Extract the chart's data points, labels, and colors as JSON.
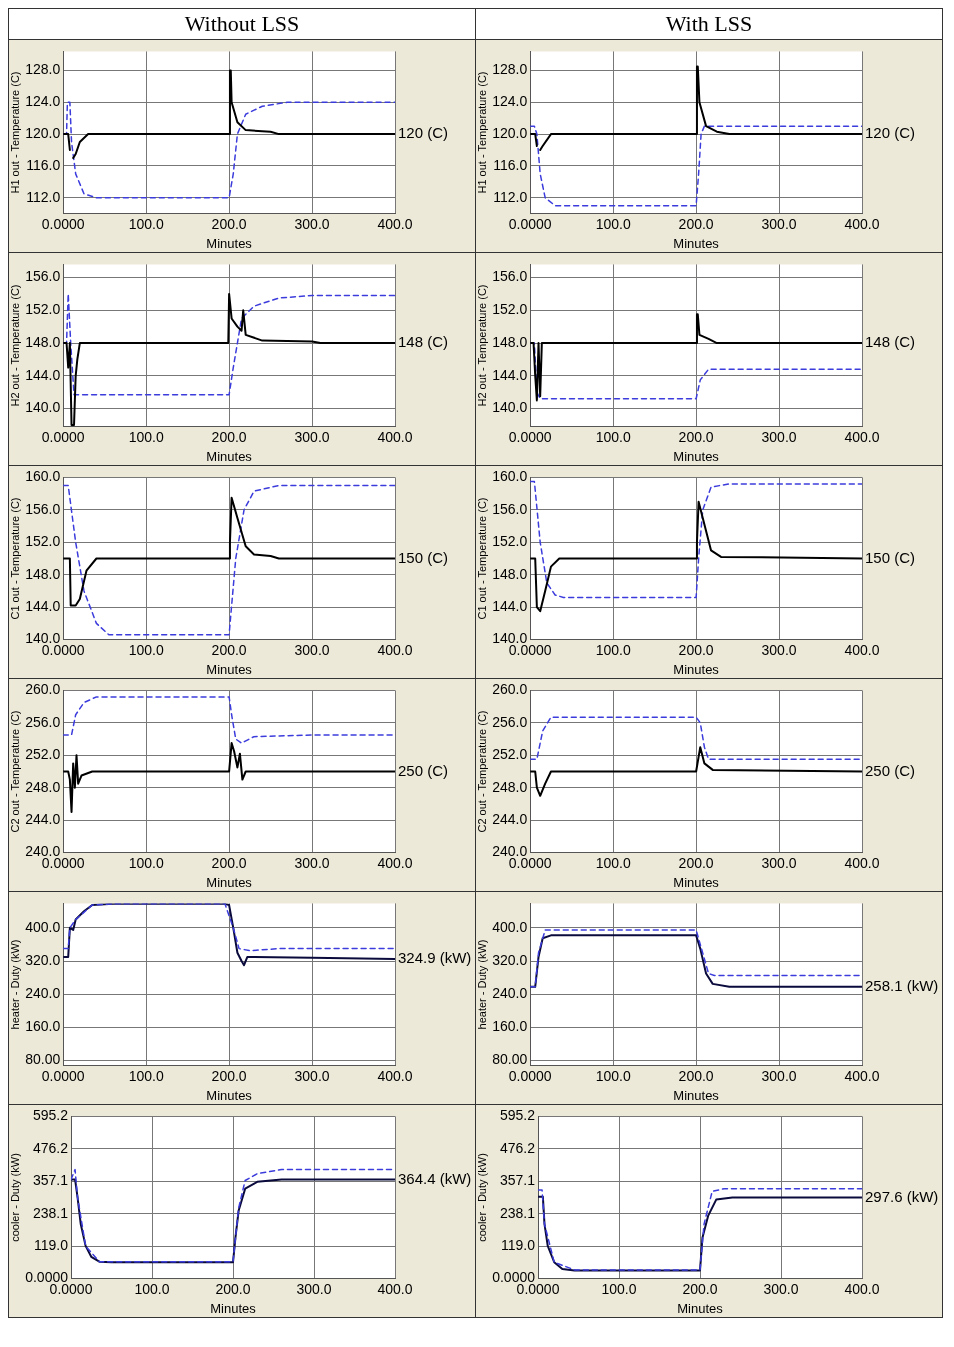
{
  "chart_data": [
    {
      "type": "line",
      "title": "Without LSS",
      "xlabel": "Minutes",
      "ylabel": "H1 out - Temperature (C)",
      "xlim": [
        0,
        400
      ],
      "ylim": [
        110,
        130.4
      ],
      "xticks": [
        {
          "value": 0,
          "label": "0.0000"
        },
        {
          "value": 100,
          "label": "100.0"
        },
        {
          "value": 200,
          "label": "200.0"
        },
        {
          "value": 300,
          "label": "300.0"
        },
        {
          "value": 400,
          "label": "400.0"
        }
      ],
      "yticks": [
        {
          "value": 112,
          "label": "112.0"
        },
        {
          "value": 116,
          "label": "116.0"
        },
        {
          "value": 120,
          "label": "120.0"
        },
        {
          "value": 124,
          "label": "124.0"
        },
        {
          "value": 128,
          "label": "128.0"
        }
      ],
      "grid": true,
      "annotations": [
        "120 (C)"
      ],
      "series": [
        {
          "color": "#000000",
          "line_style": "solid",
          "x": [
            0,
            6,
            8,
            9,
            11,
            12,
            15,
            20,
            30,
            200,
            201,
            202,
            203,
            210,
            220,
            250,
            260,
            400
          ],
          "values": [
            120,
            120,
            118,
            null,
            null,
            117,
            117.5,
            119,
            120,
            120,
            128,
            128,
            124,
            121.5,
            120.5,
            120.3,
            120,
            120
          ]
        },
        {
          "color": "#3c3cdc",
          "line_style": "dashed",
          "x": [
            0,
            4,
            5,
            8,
            10,
            15,
            25,
            40,
            200,
            205,
            210,
            220,
            240,
            270,
            400
          ],
          "values": [
            120,
            120,
            124,
            124,
            119,
            115,
            112.5,
            112,
            112,
            115,
            120,
            122.5,
            123.5,
            124,
            124
          ]
        }
      ]
    },
    {
      "type": "line",
      "title": "With LSS",
      "xlabel": "Minutes",
      "ylabel": "H1 out - Temperature (C)",
      "xlim": [
        0,
        400
      ],
      "ylim": [
        110,
        130.4
      ],
      "xticks": [
        {
          "value": 0,
          "label": "0.0000"
        },
        {
          "value": 100,
          "label": "100.0"
        },
        {
          "value": 200,
          "label": "200.0"
        },
        {
          "value": 300,
          "label": "300.0"
        },
        {
          "value": 400,
          "label": "400.0"
        }
      ],
      "yticks": [
        {
          "value": 112,
          "label": "112.0"
        },
        {
          "value": 116,
          "label": "116.0"
        },
        {
          "value": 120,
          "label": "120.0"
        },
        {
          "value": 124,
          "label": "124.0"
        },
        {
          "value": 128,
          "label": "128.0"
        }
      ],
      "grid": true,
      "annotations": [
        "120 (C)"
      ],
      "series": [
        {
          "color": "#000000",
          "line_style": "solid",
          "x": [
            0,
            6,
            8,
            9,
            11,
            12,
            15,
            25,
            200,
            201,
            202,
            204,
            212,
            225,
            240,
            400
          ],
          "values": [
            120,
            120,
            118.5,
            null,
            null,
            118,
            118.5,
            120,
            120,
            128.5,
            128.5,
            124,
            121,
            120.3,
            120,
            120
          ]
        },
        {
          "color": "#3c3cdc",
          "line_style": "dashed",
          "x": [
            0,
            5,
            8,
            12,
            18,
            30,
            200,
            203,
            206,
            210,
            220,
            400
          ],
          "values": [
            121,
            121,
            120,
            115,
            112,
            111,
            111,
            115,
            120,
            121,
            121,
            121
          ]
        }
      ]
    },
    {
      "type": "line",
      "xlabel": "Minutes",
      "ylabel": "H2 out - Temperature (C)",
      "xlim": [
        0,
        400
      ],
      "ylim": [
        137.8,
        157.6
      ],
      "xticks": [
        {
          "value": 0,
          "label": "0.0000"
        },
        {
          "value": 100,
          "label": "100.0"
        },
        {
          "value": 200,
          "label": "200.0"
        },
        {
          "value": 300,
          "label": "300.0"
        },
        {
          "value": 400,
          "label": "400.0"
        }
      ],
      "yticks": [
        {
          "value": 140,
          "label": "140.0"
        },
        {
          "value": 144,
          "label": "144.0"
        },
        {
          "value": 148,
          "label": "148.0"
        },
        {
          "value": 152,
          "label": "152.0"
        },
        {
          "value": 156,
          "label": "156.0"
        }
      ],
      "grid": true,
      "annotations": [
        "148 (C)"
      ],
      "series": [
        {
          "color": "#000000",
          "line_style": "solid",
          "x": [
            0,
            4,
            6,
            8,
            10,
            13,
            15,
            17,
            20,
            199,
            200,
            201,
            203,
            210,
            215,
            217,
            220,
            240,
            300,
            310,
            400
          ],
          "values": [
            148,
            148,
            145,
            148,
            138,
            138,
            144,
            146,
            148,
            148,
            154,
            154,
            151,
            150,
            149.5,
            152,
            149,
            148.3,
            148.2,
            148,
            148
          ]
        },
        {
          "color": "#3c3cdc",
          "line_style": "dashed",
          "x": [
            0,
            4,
            6,
            9,
            13,
            200,
            205,
            215,
            230,
            260,
            300,
            400
          ],
          "values": [
            148,
            148,
            154,
            148,
            141.7,
            141.7,
            145,
            151,
            152.5,
            153.5,
            153.8,
            153.8
          ]
        }
      ]
    },
    {
      "type": "line",
      "xlabel": "Minutes",
      "ylabel": "H2 out - Temperature (C)",
      "xlim": [
        0,
        400
      ],
      "ylim": [
        137.8,
        157.6
      ],
      "xticks": [
        {
          "value": 0,
          "label": "0.0000"
        },
        {
          "value": 100,
          "label": "100.0"
        },
        {
          "value": 200,
          "label": "200.0"
        },
        {
          "value": 300,
          "label": "300.0"
        },
        {
          "value": 400,
          "label": "400.0"
        }
      ],
      "yticks": [
        {
          "value": 140,
          "label": "140.0"
        },
        {
          "value": 144,
          "label": "144.0"
        },
        {
          "value": 148,
          "label": "148.0"
        },
        {
          "value": 152,
          "label": "152.0"
        },
        {
          "value": 156,
          "label": "156.0"
        }
      ],
      "grid": true,
      "annotations": [
        "148 (C)"
      ],
      "series": [
        {
          "color": "#000000",
          "line_style": "solid",
          "x": [
            0,
            4,
            6,
            8,
            10,
            12,
            14,
            200,
            201,
            202,
            204,
            215,
            225,
            400
          ],
          "values": [
            148,
            148,
            144,
            141,
            148,
            141.5,
            148,
            148,
            151.5,
            151.5,
            149,
            148.5,
            148,
            148
          ]
        },
        {
          "color": "#3c3cdc",
          "line_style": "dashed",
          "x": [
            0,
            5,
            8,
            12,
            200,
            205,
            215,
            400
          ],
          "values": [
            148,
            148,
            142,
            141.2,
            141.2,
            143.5,
            144.8,
            144.8
          ]
        }
      ]
    },
    {
      "type": "line",
      "xlabel": "Minutes",
      "ylabel": "C1 out - Temperature (C)",
      "xlim": [
        0,
        400
      ],
      "ylim": [
        140,
        160
      ],
      "xticks": [
        {
          "value": 0,
          "label": "0.0000"
        },
        {
          "value": 100,
          "label": "100.0"
        },
        {
          "value": 200,
          "label": "200.0"
        },
        {
          "value": 300,
          "label": "300.0"
        },
        {
          "value": 400,
          "label": "400.0"
        }
      ],
      "yticks": [
        {
          "value": 140,
          "label": "140.0"
        },
        {
          "value": 144,
          "label": "144.0"
        },
        {
          "value": 148,
          "label": "148.0"
        },
        {
          "value": 152,
          "label": "152.0"
        },
        {
          "value": 156,
          "label": "156.0"
        },
        {
          "value": 160,
          "label": "160.0"
        }
      ],
      "grid": true,
      "annotations": [
        "150 (C)"
      ],
      "series": [
        {
          "color": "#000000",
          "line_style": "solid",
          "x": [
            0,
            8,
            9,
            15,
            20,
            28,
            40,
            200,
            201,
            203,
            210,
            220,
            230,
            250,
            260,
            400
          ],
          "values": [
            150,
            150,
            144.2,
            144.2,
            145,
            148.5,
            150,
            150,
            152,
            157.5,
            155,
            151.5,
            150.5,
            150.3,
            150,
            150
          ]
        },
        {
          "color": "#3c3cdc",
          "line_style": "dashed",
          "x": [
            0,
            6,
            15,
            25,
            40,
            55,
            200,
            202,
            208,
            218,
            230,
            260,
            400
          ],
          "values": [
            159,
            159,
            152,
            146,
            142,
            140.6,
            140.6,
            143,
            150,
            156,
            158.3,
            159,
            159
          ]
        }
      ]
    },
    {
      "type": "line",
      "xlabel": "Minutes",
      "ylabel": "C1 out - Temperature (C)",
      "xlim": [
        0,
        400
      ],
      "ylim": [
        140,
        160
      ],
      "xticks": [
        {
          "value": 0,
          "label": "0.0000"
        },
        {
          "value": 100,
          "label": "100.0"
        },
        {
          "value": 200,
          "label": "200.0"
        },
        {
          "value": 300,
          "label": "300.0"
        },
        {
          "value": 400,
          "label": "400.0"
        }
      ],
      "yticks": [
        {
          "value": 140,
          "label": "140.0"
        },
        {
          "value": 144,
          "label": "144.0"
        },
        {
          "value": 148,
          "label": "148.0"
        },
        {
          "value": 152,
          "label": "152.0"
        },
        {
          "value": 156,
          "label": "156.0"
        },
        {
          "value": 160,
          "label": "160.0"
        }
      ],
      "grid": true,
      "annotations": [
        "150 (C)"
      ],
      "series": [
        {
          "color": "#000000",
          "line_style": "solid",
          "x": [
            0,
            6,
            8,
            12,
            18,
            25,
            35,
            200,
            201,
            203,
            208,
            218,
            230,
            400
          ],
          "values": [
            150,
            150,
            144,
            143.5,
            146,
            149,
            150,
            150,
            152,
            157,
            155,
            151,
            150.2,
            150
          ]
        },
        {
          "color": "#3c3cdc",
          "line_style": "dashed",
          "x": [
            0,
            5,
            12,
            20,
            30,
            40,
            200,
            203,
            208,
            218,
            240,
            400
          ],
          "values": [
            159.5,
            159.5,
            152,
            147,
            145.5,
            145.2,
            145.2,
            150,
            156,
            158.8,
            159.2,
            159.2
          ]
        }
      ]
    },
    {
      "type": "line",
      "xlabel": "Minutes",
      "ylabel": "C2 out - Temperature (C)",
      "xlim": [
        0,
        400
      ],
      "ylim": [
        240,
        260
      ],
      "xticks": [
        {
          "value": 0,
          "label": "0.0000"
        },
        {
          "value": 100,
          "label": "100.0"
        },
        {
          "value": 200,
          "label": "200.0"
        },
        {
          "value": 300,
          "label": "300.0"
        },
        {
          "value": 400,
          "label": "400.0"
        }
      ],
      "yticks": [
        {
          "value": 240,
          "label": "240.0"
        },
        {
          "value": 244,
          "label": "244.0"
        },
        {
          "value": 248,
          "label": "248.0"
        },
        {
          "value": 252,
          "label": "252.0"
        },
        {
          "value": 256,
          "label": "256.0"
        },
        {
          "value": 260,
          "label": "260.0"
        }
      ],
      "grid": true,
      "annotations": [
        "250 (C)"
      ],
      "series": [
        {
          "color": "#000000",
          "line_style": "solid",
          "x": [
            0,
            6,
            8,
            10,
            12,
            14,
            16,
            18,
            22,
            35,
            200,
            203,
            206,
            210,
            213,
            216,
            220,
            400
          ],
          "values": [
            250,
            250,
            249,
            245,
            251,
            248,
            252,
            248.5,
            249.5,
            250,
            250,
            253.5,
            252.5,
            250.5,
            252.2,
            249,
            250,
            250
          ]
        },
        {
          "color": "#3c3cdc",
          "line_style": "dashed",
          "x": [
            0,
            10,
            15,
            25,
            40,
            200,
            203,
            208,
            215,
            230,
            300,
            400
          ],
          "values": [
            254.5,
            254.5,
            257,
            258.5,
            259.2,
            259.2,
            257,
            254,
            253.5,
            254.3,
            254.5,
            254.5
          ]
        }
      ]
    },
    {
      "type": "line",
      "xlabel": "Minutes",
      "ylabel": "C2 out - Temperature (C)",
      "xlim": [
        0,
        400
      ],
      "ylim": [
        240,
        260
      ],
      "xticks": [
        {
          "value": 0,
          "label": "0.0000"
        },
        {
          "value": 100,
          "label": "100.0"
        },
        {
          "value": 200,
          "label": "200.0"
        },
        {
          "value": 300,
          "label": "300.0"
        },
        {
          "value": 400,
          "label": "400.0"
        }
      ],
      "yticks": [
        {
          "value": 240,
          "label": "240.0"
        },
        {
          "value": 244,
          "label": "244.0"
        },
        {
          "value": 248,
          "label": "248.0"
        },
        {
          "value": 252,
          "label": "252.0"
        },
        {
          "value": 256,
          "label": "256.0"
        },
        {
          "value": 260,
          "label": "260.0"
        }
      ],
      "grid": true,
      "annotations": [
        "250 (C)"
      ],
      "series": [
        {
          "color": "#000000",
          "line_style": "solid",
          "x": [
            0,
            6,
            8,
            12,
            18,
            25,
            200,
            205,
            210,
            220,
            400
          ],
          "values": [
            250,
            250,
            248,
            247,
            248.5,
            250,
            250,
            253,
            251,
            250.2,
            250
          ]
        },
        {
          "color": "#3c3cdc",
          "line_style": "dashed",
          "x": [
            0,
            8,
            15,
            25,
            200,
            205,
            210,
            215,
            400
          ],
          "values": [
            251.5,
            251.5,
            255,
            256.7,
            256.7,
            256,
            253,
            251.5,
            251.5
          ]
        }
      ]
    },
    {
      "type": "line",
      "xlabel": "Minutes",
      "ylabel": "heater - Duty (kW)",
      "xlim": [
        0,
        400
      ],
      "ylim": [
        68,
        459
      ],
      "xticks": [
        {
          "value": 0,
          "label": "0.0000"
        },
        {
          "value": 100,
          "label": "100.0"
        },
        {
          "value": 200,
          "label": "200.0"
        },
        {
          "value": 300,
          "label": "300.0"
        },
        {
          "value": 400,
          "label": "400.0"
        }
      ],
      "yticks": [
        {
          "value": 80,
          "label": "80.00"
        },
        {
          "value": 160,
          "label": "160.0"
        },
        {
          "value": 240,
          "label": "240.0"
        },
        {
          "value": 320,
          "label": "320.0"
        },
        {
          "value": 400,
          "label": "400.0"
        }
      ],
      "grid": true,
      "annotations": [
        "324.9 (kW)"
      ],
      "series": [
        {
          "color": "#3c3cdc",
          "line_style": "dashed",
          "x": [
            0,
            6,
            8,
            15,
            35,
            60,
            195,
            205,
            212,
            225,
            260,
            400
          ],
          "values": [
            350,
            350,
            400,
            420,
            455,
            458,
            458,
            400,
            350,
            345,
            350,
            350
          ]
        },
        {
          "color": "#0a0a3c",
          "line_style": "solid",
          "x": [
            0,
            6,
            8,
            12,
            15,
            25,
            35,
            60,
            195,
            200,
            205,
            210,
            215,
            218,
            222,
            300,
            400
          ],
          "values": [
            330,
            330,
            400,
            395,
            420,
            440,
            455,
            458,
            458,
            455,
            400,
            340,
            320,
            310,
            330,
            328,
            325
          ]
        }
      ]
    },
    {
      "type": "line",
      "xlabel": "Minutes",
      "ylabel": "heater - Duty (kW)",
      "xlim": [
        0,
        400
      ],
      "ylim": [
        68,
        459
      ],
      "xticks": [
        {
          "value": 0,
          "label": "0.0000"
        },
        {
          "value": 100,
          "label": "100.0"
        },
        {
          "value": 200,
          "label": "200.0"
        },
        {
          "value": 300,
          "label": "300.0"
        },
        {
          "value": 400,
          "label": "400.0"
        }
      ],
      "yticks": [
        {
          "value": 80,
          "label": "80.00"
        },
        {
          "value": 160,
          "label": "160.0"
        },
        {
          "value": 240,
          "label": "240.0"
        },
        {
          "value": 320,
          "label": "320.0"
        },
        {
          "value": 400,
          "label": "400.0"
        }
      ],
      "grid": true,
      "annotations": [
        "258.1 (kW)"
      ],
      "series": [
        {
          "color": "#3c3cdc",
          "line_style": "dashed",
          "x": [
            0,
            6,
            10,
            18,
            200,
            205,
            215,
            222,
            400
          ],
          "values": [
            258,
            258,
            340,
            395,
            395,
            360,
            290,
            285,
            285
          ]
        },
        {
          "color": "#0a0a3c",
          "line_style": "solid",
          "x": [
            0,
            6,
            10,
            15,
            25,
            200,
            205,
            212,
            220,
            240,
            400
          ],
          "values": [
            258,
            258,
            330,
            375,
            382,
            382,
            350,
            290,
            265,
            258,
            258
          ]
        }
      ]
    },
    {
      "type": "line",
      "xlabel": "Minutes",
      "ylabel": "cooler - Duty (kW)",
      "xlim": [
        0,
        400
      ],
      "ylim": [
        0,
        595.2
      ],
      "xticks": [
        {
          "value": 0,
          "label": "0.0000"
        },
        {
          "value": 100,
          "label": "100.0"
        },
        {
          "value": 200,
          "label": "200.0"
        },
        {
          "value": 300,
          "label": "300.0"
        },
        {
          "value": 400,
          "label": "400.0"
        }
      ],
      "yticks": [
        {
          "value": 0,
          "label": "0.0000"
        },
        {
          "value": 119,
          "label": "119.0"
        },
        {
          "value": 238.1,
          "label": "238.1"
        },
        {
          "value": 357.1,
          "label": "357.1"
        },
        {
          "value": 476.2,
          "label": "476.2"
        },
        {
          "value": 595.2,
          "label": "595.2"
        }
      ],
      "grid": true,
      "annotations": [
        "364.4 (kW)"
      ],
      "series": [
        {
          "color": "#3c3cdc",
          "line_style": "dashed",
          "x": [
            0,
            5,
            8,
            18,
            35,
            200,
            207,
            215,
            230,
            260,
            400
          ],
          "values": [
            364,
            400,
            300,
            120,
            62,
            62,
            260,
            360,
            385,
            400,
            400
          ]
        },
        {
          "color": "#0a0a3c",
          "line_style": "solid",
          "x": [
            0,
            5,
            8,
            12,
            18,
            25,
            35,
            50,
            200,
            203,
            207,
            215,
            230,
            260,
            400
          ],
          "values": [
            364,
            364,
            300,
            200,
            120,
            80,
            62,
            60,
            60,
            150,
            250,
            330,
            355,
            364,
            364
          ]
        }
      ]
    },
    {
      "type": "line",
      "xlabel": "Minutes",
      "ylabel": "cooler - Duty (kW)",
      "xlim": [
        0,
        400
      ],
      "ylim": [
        0,
        595.2
      ],
      "xticks": [
        {
          "value": 0,
          "label": "0.0000"
        },
        {
          "value": 100,
          "label": "100.0"
        },
        {
          "value": 200,
          "label": "200.0"
        },
        {
          "value": 300,
          "label": "300.0"
        },
        {
          "value": 400,
          "label": "400.0"
        }
      ],
      "yticks": [
        {
          "value": 0,
          "label": "0.0000"
        },
        {
          "value": 119,
          "label": "119.0"
        },
        {
          "value": 238.1,
          "label": "238.1"
        },
        {
          "value": 357.1,
          "label": "357.1"
        },
        {
          "value": 476.2,
          "label": "476.2"
        },
        {
          "value": 595.2,
          "label": "595.2"
        }
      ],
      "grid": true,
      "annotations": [
        "297.6 (kW)"
      ],
      "series": [
        {
          "color": "#3c3cdc",
          "line_style": "dashed",
          "x": [
            0,
            5,
            8,
            20,
            45,
            200,
            205,
            215,
            230,
            400
          ],
          "values": [
            325,
            325,
            200,
            60,
            32,
            32,
            200,
            320,
            330,
            330
          ]
        },
        {
          "color": "#0a0a3c",
          "line_style": "solid",
          "x": [
            0,
            6,
            8,
            12,
            20,
            30,
            45,
            200,
            203,
            210,
            220,
            240,
            400
          ],
          "values": [
            300,
            300,
            200,
            120,
            60,
            35,
            30,
            30,
            150,
            230,
            290,
            298,
            298
          ]
        }
      ]
    }
  ]
}
